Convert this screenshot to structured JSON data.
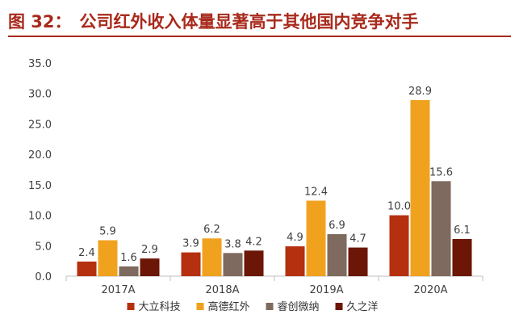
{
  "header": {
    "figure_label": "图 32：",
    "title": "公司红外收入体量显著高于其他国内竞争对手"
  },
  "chart_data": {
    "type": "bar",
    "categories": [
      "2017A",
      "2018A",
      "2019A",
      "2020A"
    ],
    "series": [
      {
        "name": "大立科技",
        "color": "#b5300e",
        "values": [
          2.4,
          3.9,
          4.9,
          10.0
        ]
      },
      {
        "name": "高德红外",
        "color": "#f0a21f",
        "values": [
          5.9,
          6.2,
          12.4,
          28.9
        ]
      },
      {
        "name": "睿创微纳",
        "color": "#7e6a5e",
        "values": [
          1.6,
          3.8,
          6.9,
          15.6
        ]
      },
      {
        "name": "久之洋",
        "color": "#6b1606",
        "values": [
          2.9,
          4.2,
          4.7,
          6.1
        ]
      }
    ],
    "y_ticks": [
      "0.0",
      "5.0",
      "10.0",
      "15.0",
      "20.0",
      "25.0",
      "30.0",
      "35.0"
    ],
    "ylim": [
      0,
      35
    ],
    "grid": false,
    "legend_position": "bottom"
  }
}
